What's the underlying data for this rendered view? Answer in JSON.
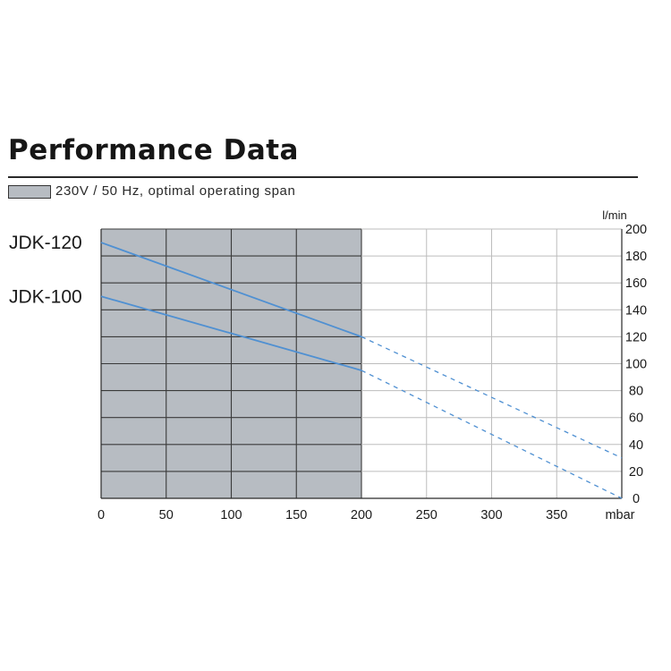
{
  "header": {
    "title": "Performance Data",
    "legend_label": "230V / 50 Hz, optimal operating span",
    "legend_color": "#b7bcc2"
  },
  "chart_data": {
    "type": "line",
    "title": "Performance Data",
    "x_unit_label": "mbar",
    "y_unit_label": "l/min",
    "x_ticks": [
      0,
      50,
      100,
      150,
      200,
      250,
      300,
      350
    ],
    "y_ticks": [
      0,
      20,
      40,
      60,
      80,
      100,
      120,
      140,
      160,
      180,
      200
    ],
    "xlim": [
      0,
      400
    ],
    "ylim": [
      0,
      200
    ],
    "grid": true,
    "optimal_span": {
      "x_from": 0,
      "x_to": 200,
      "color": "#b7bcc2"
    },
    "line_color": "#4f90d2",
    "series": [
      {
        "name": "JDK-120",
        "x": [
          0,
          200
        ],
        "y": [
          190,
          120
        ],
        "extension": {
          "x": [
            200,
            400
          ],
          "y": [
            120,
            30
          ]
        }
      },
      {
        "name": "JDK-100",
        "x": [
          0,
          200
        ],
        "y": [
          150,
          95
        ],
        "extension": {
          "x": [
            200,
            400
          ],
          "y": [
            95,
            0
          ]
        }
      }
    ]
  }
}
